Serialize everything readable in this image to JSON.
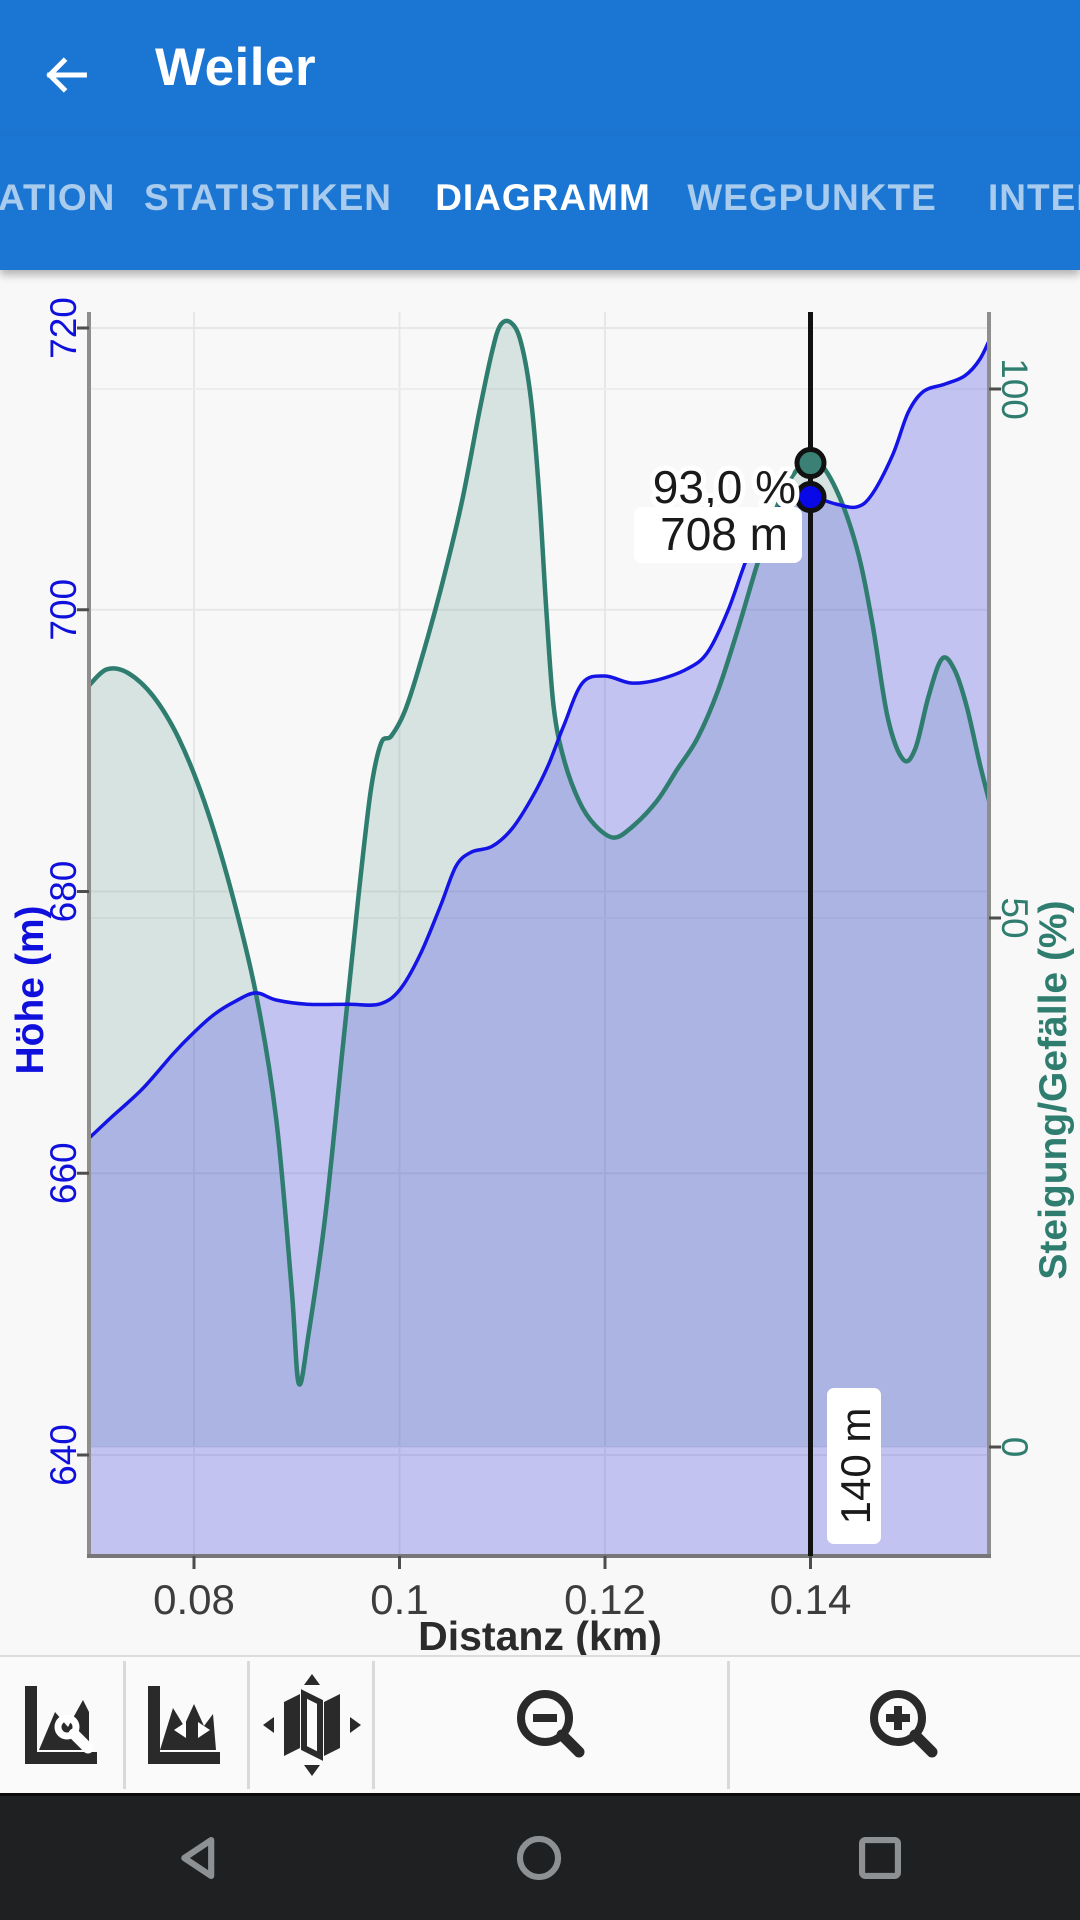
{
  "app_bar": {
    "title": "Weiler"
  },
  "tabs": {
    "items": [
      {
        "label": "ATION",
        "active": false
      },
      {
        "label": "STATISTIKEN",
        "active": false
      },
      {
        "label": "DIAGRAMM",
        "active": true
      },
      {
        "label": "WEGPUNKTE",
        "active": false
      },
      {
        "label": "INTER",
        "active": false
      }
    ]
  },
  "chart_data": {
    "type": "area",
    "title": "",
    "grid": true,
    "x_axis": {
      "label": "Distanz (km)",
      "ticks": [
        "0.08",
        "0.1",
        "0.12",
        "0.14"
      ],
      "tick_values": [
        0.08,
        0.1,
        0.12,
        0.14
      ],
      "range_km": [
        0.0698,
        0.1578
      ]
    },
    "y_left": {
      "label": "Höhe (m)",
      "color": "#1010dd",
      "ticks": [
        "720",
        "700",
        "680",
        "660",
        "640"
      ],
      "tick_values": [
        720,
        700,
        680,
        660,
        640
      ],
      "range": [
        637.5,
        721.3
      ]
    },
    "y_right": {
      "label": "Steigung/Gefälle (%)",
      "color": "#2f7d6f",
      "ticks": [
        "100",
        "50",
        "0"
      ],
      "tick_values": [
        100,
        50,
        0
      ],
      "range": [
        -10.3,
        107.4
      ]
    },
    "series": [
      {
        "name": "Steigung/Gefälle",
        "axis": "right",
        "line_color": "#2f7d6f",
        "fill_color": "rgba(47,125,110,0.17)",
        "baseline": 0,
        "points": [
          [
            0.0698,
            72
          ],
          [
            0.0715,
            73.5
          ],
          [
            0.0735,
            73.2
          ],
          [
            0.076,
            71
          ],
          [
            0.0785,
            67
          ],
          [
            0.081,
            61
          ],
          [
            0.0835,
            53
          ],
          [
            0.086,
            43
          ],
          [
            0.088,
            31
          ],
          [
            0.0895,
            15
          ],
          [
            0.0902,
            6
          ],
          [
            0.0912,
            11
          ],
          [
            0.0928,
            22
          ],
          [
            0.0945,
            38
          ],
          [
            0.096,
            52
          ],
          [
            0.0972,
            62
          ],
          [
            0.0982,
            66.5
          ],
          [
            0.0992,
            67.2
          ],
          [
            0.1005,
            69.5
          ],
          [
            0.102,
            74
          ],
          [
            0.104,
            81
          ],
          [
            0.106,
            89
          ],
          [
            0.1078,
            98
          ],
          [
            0.109,
            103.5
          ],
          [
            0.1098,
            106
          ],
          [
            0.1108,
            106.3
          ],
          [
            0.1118,
            104.5
          ],
          [
            0.1128,
            99
          ],
          [
            0.1136,
            90
          ],
          [
            0.1143,
            79
          ],
          [
            0.115,
            70
          ],
          [
            0.116,
            65
          ],
          [
            0.1175,
            61
          ],
          [
            0.119,
            58.8
          ],
          [
            0.1208,
            57.6
          ],
          [
            0.1225,
            58.5
          ],
          [
            0.125,
            61
          ],
          [
            0.127,
            64
          ],
          [
            0.129,
            67
          ],
          [
            0.131,
            71.5
          ],
          [
            0.133,
            77.5
          ],
          [
            0.135,
            84
          ],
          [
            0.137,
            89.5
          ],
          [
            0.1388,
            92.5
          ],
          [
            0.1405,
            93.3
          ],
          [
            0.1425,
            90.5
          ],
          [
            0.1445,
            85
          ],
          [
            0.146,
            78
          ],
          [
            0.1475,
            69
          ],
          [
            0.149,
            65
          ],
          [
            0.1502,
            66
          ],
          [
            0.1515,
            71
          ],
          [
            0.1528,
            74.5
          ],
          [
            0.154,
            73.5
          ],
          [
            0.1552,
            70
          ],
          [
            0.1565,
            64.5
          ],
          [
            0.1578,
            59.5
          ]
        ]
      },
      {
        "name": "Höhe",
        "axis": "left",
        "line_color": "#1414e6",
        "fill_color": "rgba(72,72,228,0.30)",
        "baseline": "plot_bottom",
        "points": [
          [
            0.0698,
            662.5
          ],
          [
            0.072,
            664
          ],
          [
            0.075,
            666
          ],
          [
            0.078,
            668.5
          ],
          [
            0.08,
            670
          ],
          [
            0.082,
            671.3
          ],
          [
            0.084,
            672.2
          ],
          [
            0.086,
            672.8
          ],
          [
            0.088,
            672.3
          ],
          [
            0.091,
            672
          ],
          [
            0.095,
            672
          ],
          [
            0.098,
            672
          ],
          [
            0.1,
            673
          ],
          [
            0.102,
            675.5
          ],
          [
            0.104,
            679
          ],
          [
            0.1055,
            681.8
          ],
          [
            0.107,
            682.8
          ],
          [
            0.109,
            683.2
          ],
          [
            0.111,
            684.5
          ],
          [
            0.113,
            686.8
          ],
          [
            0.1145,
            689
          ],
          [
            0.116,
            691.8
          ],
          [
            0.1178,
            694.8
          ],
          [
            0.12,
            695.3
          ],
          [
            0.1225,
            694.8
          ],
          [
            0.125,
            695
          ],
          [
            0.128,
            695.8
          ],
          [
            0.13,
            697
          ],
          [
            0.132,
            700
          ],
          [
            0.134,
            704
          ],
          [
            0.136,
            706.6
          ],
          [
            0.138,
            707.6
          ],
          [
            0.14,
            708
          ],
          [
            0.1425,
            707.5
          ],
          [
            0.1445,
            707.3
          ],
          [
            0.146,
            708.2
          ],
          [
            0.148,
            711
          ],
          [
            0.1495,
            714
          ],
          [
            0.151,
            715.5
          ],
          [
            0.153,
            716
          ],
          [
            0.155,
            716.6
          ],
          [
            0.1565,
            717.8
          ],
          [
            0.1578,
            719.8
          ]
        ]
      }
    ],
    "cursor": {
      "x_km": 0.14,
      "slope_pct": 93.0,
      "elevation_m": 708,
      "slope_label": "93,0 %",
      "elevation_label": "708 m",
      "distance_label": "140 m"
    }
  },
  "toolbar": {
    "buttons": [
      {
        "name": "chart-settings",
        "icon": "area-chart-wrench"
      },
      {
        "name": "chart-pan",
        "icon": "area-chart-arrows"
      },
      {
        "name": "map",
        "icon": "map-move"
      },
      {
        "name": "zoom-out",
        "icon": "magnifier-minus"
      },
      {
        "name": "zoom-in",
        "icon": "magnifier-plus"
      }
    ]
  },
  "nav_bar": {
    "buttons": [
      {
        "name": "back",
        "icon": "triangle-left"
      },
      {
        "name": "home",
        "icon": "circle"
      },
      {
        "name": "recents",
        "icon": "square"
      }
    ]
  }
}
